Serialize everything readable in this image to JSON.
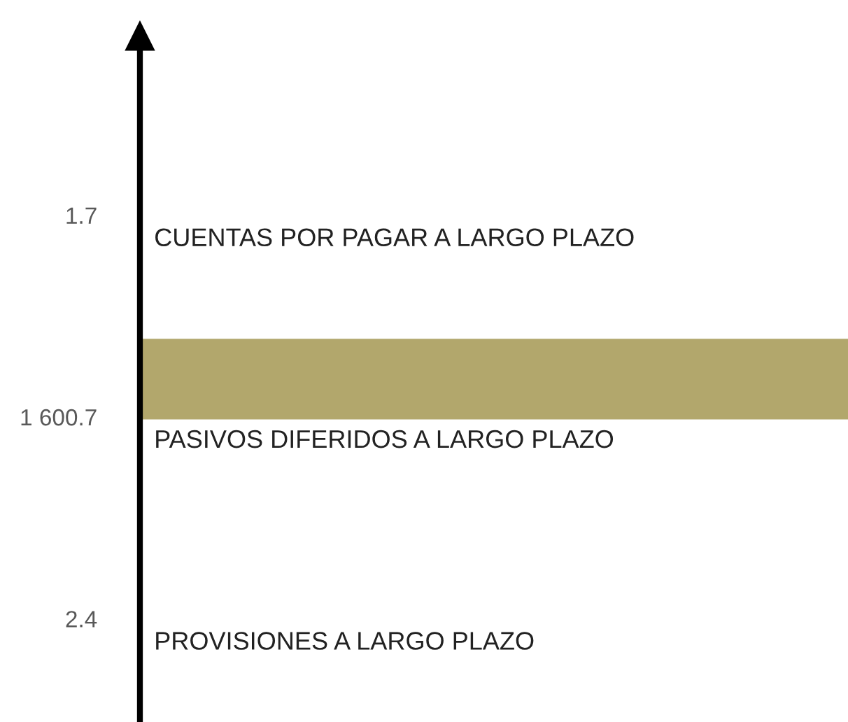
{
  "chart_data": {
    "type": "bar",
    "orientation": "horizontal",
    "categories": [
      "CUENTAS POR PAGAR A LARGO PLAZO",
      "PASIVOS DIFERIDOS A LARGO PLAZO",
      "PROVISIONES A LARGO PLAZO"
    ],
    "values": [
      1.7,
      1600.7,
      2.4
    ],
    "colors": [
      "#a51e3f",
      "#b2a76c",
      "#5c2a33"
    ],
    "value_labels": [
      "1.7",
      "1 600.7",
      "2.4"
    ]
  }
}
